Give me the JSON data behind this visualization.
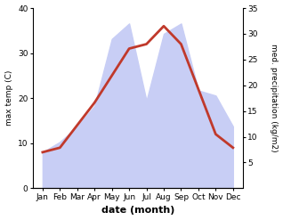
{
  "months": [
    "Jan",
    "Feb",
    "Mar",
    "Apr",
    "May",
    "Jun",
    "Jul",
    "Aug",
    "Sep",
    "Oct",
    "Nov",
    "Dec"
  ],
  "temperature": [
    8,
    9,
    14,
    19,
    25,
    31,
    32,
    36,
    32,
    22,
    12,
    9
  ],
  "precipitation": [
    7,
    9,
    12,
    16,
    29,
    32,
    17,
    30,
    32,
    19,
    18,
    12
  ],
  "temp_color": "#c0392b",
  "precip_fill_color": "#c8cef5",
  "temp_ylim": [
    0,
    40
  ],
  "precip_ylim": [
    0,
    35
  ],
  "temp_yticks": [
    0,
    10,
    20,
    30,
    40
  ],
  "precip_yticks": [
    5,
    10,
    15,
    20,
    25,
    30,
    35
  ],
  "xlabel": "date (month)",
  "ylabel_left": "max temp (C)",
  "ylabel_right": "med. precipitation (kg/m2)",
  "line_width": 2.0,
  "bg_color": "#ffffff"
}
